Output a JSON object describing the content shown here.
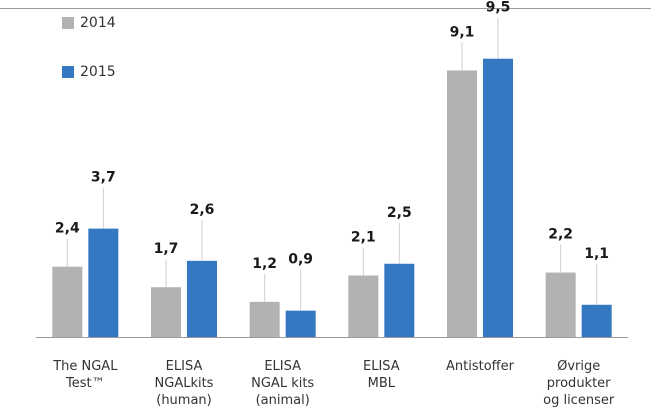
{
  "chart_data": {
    "type": "bar",
    "title": "",
    "xlabel": "",
    "ylabel": "",
    "ylim": [
      0,
      11.3
    ],
    "grid": false,
    "legend_position": "top-left",
    "categories": [
      [
        "The NGAL",
        "Test™"
      ],
      [
        "ELISA",
        "NGALkits",
        "(human)"
      ],
      [
        "ELISA",
        "NGAL kits",
        "(animal)"
      ],
      [
        "ELISA",
        "MBL"
      ],
      [
        "Antistoffer"
      ],
      [
        "Øvrige",
        "produkter",
        "og licenser"
      ]
    ],
    "series": [
      {
        "name": "2014",
        "color": "#b2b2b2",
        "values": [
          2.4,
          1.7,
          1.2,
          2.1,
          9.1,
          2.2
        ],
        "labels": [
          "2,4",
          "1,7",
          "1,2",
          "2,1",
          "9,1",
          "2,2"
        ]
      },
      {
        "name": "2015",
        "color": "#3578c2",
        "values": [
          3.7,
          2.6,
          0.9,
          2.5,
          9.5,
          1.1
        ],
        "labels": [
          "3,7",
          "2,6",
          "0,9",
          "2,5",
          "9,5",
          "1,1"
        ]
      }
    ]
  }
}
